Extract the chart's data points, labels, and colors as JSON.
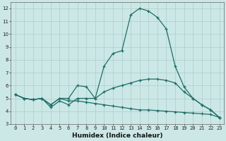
{
  "xlabel": "Humidex (Indice chaleur)",
  "xlim": [
    -0.5,
    23.5
  ],
  "ylim": [
    3,
    12.5
  ],
  "yticks": [
    3,
    4,
    5,
    6,
    7,
    8,
    9,
    10,
    11,
    12
  ],
  "xticks": [
    0,
    1,
    2,
    3,
    4,
    5,
    6,
    7,
    8,
    9,
    10,
    11,
    12,
    13,
    14,
    15,
    16,
    17,
    18,
    19,
    20,
    21,
    22,
    23
  ],
  "background_color": "#cce8e6",
  "grid_color": "#aaccca",
  "line_color": "#1e6e66",
  "line1_x": [
    0,
    1,
    2,
    3,
    4,
    5,
    6,
    7,
    8,
    9,
    10,
    11,
    12,
    13,
    14,
    15,
    16,
    17,
    18,
    19,
    20,
    21,
    22,
    23
  ],
  "line1_y": [
    5.3,
    5.0,
    4.9,
    5.0,
    4.5,
    5.0,
    5.0,
    6.0,
    5.9,
    5.0,
    7.5,
    8.5,
    8.7,
    11.5,
    12.0,
    11.8,
    11.3,
    10.4,
    7.5,
    5.9,
    5.0,
    4.5,
    4.1,
    3.5
  ],
  "line2_x": [
    0,
    1,
    2,
    3,
    4,
    5,
    6,
    7,
    8,
    9,
    10,
    11,
    12,
    13,
    14,
    15,
    16,
    17,
    18,
    19,
    20,
    21,
    22,
    23
  ],
  "line2_y": [
    5.3,
    5.0,
    4.9,
    5.0,
    4.3,
    4.8,
    4.5,
    5.0,
    5.0,
    5.0,
    5.5,
    5.8,
    6.0,
    6.2,
    6.4,
    6.5,
    6.5,
    6.4,
    6.2,
    5.5,
    5.0,
    4.5,
    4.1,
    3.5
  ],
  "line3_x": [
    0,
    1,
    2,
    3,
    4,
    5,
    6,
    7,
    8,
    9,
    10,
    11,
    12,
    13,
    14,
    15,
    16,
    17,
    18,
    19,
    20,
    21,
    22,
    23
  ],
  "line3_y": [
    5.3,
    5.0,
    4.9,
    5.0,
    4.5,
    5.0,
    4.8,
    4.8,
    4.7,
    4.6,
    4.5,
    4.4,
    4.3,
    4.2,
    4.1,
    4.1,
    4.05,
    4.0,
    3.95,
    3.9,
    3.85,
    3.8,
    3.75,
    3.5
  ],
  "tick_fontsize": 5,
  "axis_fontsize": 6.5
}
